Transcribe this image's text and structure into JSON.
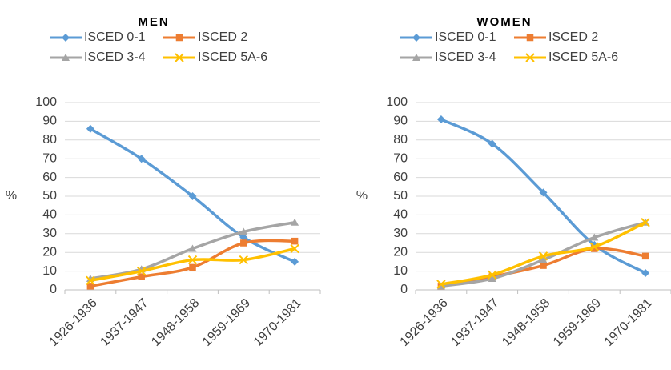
{
  "chart_data": [
    {
      "type": "line",
      "title": "MEN",
      "y_label": "%",
      "categories": [
        "1926-1936",
        "1937-1947",
        "1948-1958",
        "1959-1969",
        "1970-1981"
      ],
      "ylim": [
        0,
        100
      ],
      "yticks": [
        0,
        10,
        20,
        30,
        40,
        50,
        60,
        70,
        80,
        90,
        100
      ],
      "grid": true,
      "smooth": true,
      "series": [
        {
          "name": "ISCED 0-1",
          "color": "#5b9bd5",
          "marker": "diamond",
          "values": [
            86,
            70,
            50,
            28,
            15
          ]
        },
        {
          "name": "ISCED 2",
          "color": "#ed7d31",
          "marker": "square",
          "values": [
            2,
            7,
            12,
            25,
            26
          ]
        },
        {
          "name": "ISCED 3-4",
          "color": "#a5a5a5",
          "marker": "triangle",
          "values": [
            6,
            11,
            22,
            31,
            36
          ]
        },
        {
          "name": "ISCED 5A-6",
          "color": "#ffc000",
          "marker": "x",
          "values": [
            5,
            10,
            16,
            16,
            22
          ]
        }
      ]
    },
    {
      "type": "line",
      "title": "WOMEN",
      "y_label": "%",
      "categories": [
        "1926-1936",
        "1937-1947",
        "1948-1958",
        "1959-1969",
        "1970-1981"
      ],
      "ylim": [
        0,
        100
      ],
      "yticks": [
        0,
        10,
        20,
        30,
        40,
        50,
        60,
        70,
        80,
        90,
        100
      ],
      "grid": true,
      "smooth": true,
      "series": [
        {
          "name": "ISCED 0-1",
          "color": "#5b9bd5",
          "marker": "diamond",
          "values": [
            91,
            78,
            52,
            24,
            9
          ]
        },
        {
          "name": "ISCED 2",
          "color": "#ed7d31",
          "marker": "square",
          "values": [
            2,
            7,
            13,
            22,
            18
          ]
        },
        {
          "name": "ISCED 3-4",
          "color": "#a5a5a5",
          "marker": "triangle",
          "values": [
            2,
            6,
            16,
            28,
            36
          ]
        },
        {
          "name": "ISCED 5A-6",
          "color": "#ffc000",
          "marker": "x",
          "values": [
            3,
            8,
            18,
            23,
            36
          ]
        }
      ]
    }
  ]
}
